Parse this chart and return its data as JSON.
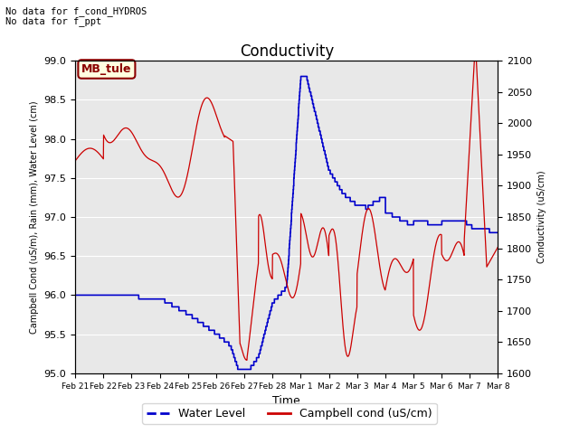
{
  "title": "Conductivity",
  "xlabel": "Time",
  "ylabel_left": "Campbell Cond (uS/m), Rain (mm), Water Level (cm)",
  "ylabel_right": "Conductivity (uS/cm)",
  "top_text1": "No data for f_cond_HYDROS",
  "top_text2": "No data for f_ppt",
  "box_label": "MB_tule",
  "ylim_left": [
    95.0,
    99.0
  ],
  "ylim_right": [
    1600,
    2100
  ],
  "bg_color": "#e8e8e8",
  "water_level_color": "#0000cc",
  "campbell_color": "#cc0000",
  "legend_wl": "Water Level",
  "legend_camp": "Campbell cond (uS/cm)",
  "tick_labels": [
    "Feb 21",
    "Feb 22",
    "Feb 23",
    "Feb 24",
    "Feb 25",
    "Feb 26",
    "Feb 27",
    "Feb 28",
    "Mar 1",
    "Mar 2",
    "Mar 3",
    "Mar 4",
    "Mar 5",
    "Mar 6",
    "Mar 7",
    "Mar 8"
  ],
  "yticks_left": [
    95.0,
    95.5,
    96.0,
    96.5,
    97.0,
    97.5,
    98.0,
    98.5,
    99.0
  ],
  "yticks_right": [
    1600,
    1650,
    1700,
    1750,
    1800,
    1850,
    1900,
    1950,
    2000,
    2050,
    2100
  ]
}
